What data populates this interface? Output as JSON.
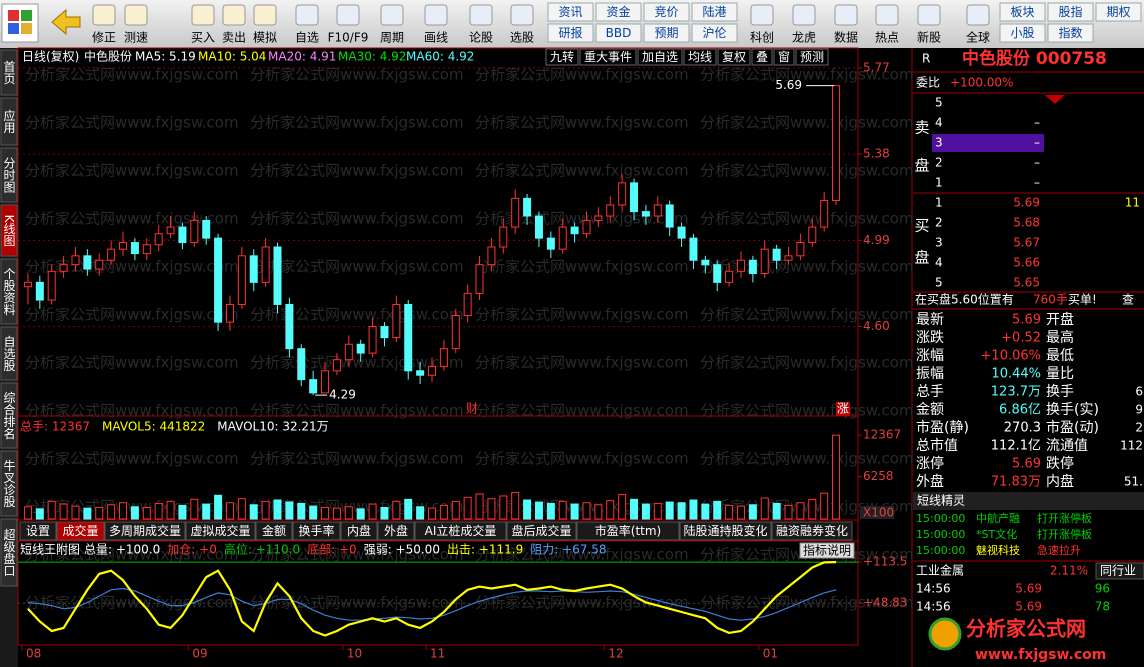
{
  "toolbar": {
    "buttons": [
      "修正",
      "测速",
      "买入",
      "卖出",
      "模拟",
      "自选",
      "F10/F9",
      "周期",
      "画线",
      "论股",
      "选股",
      "科创",
      "龙虎",
      "数据",
      "热点",
      "新股",
      "全球"
    ],
    "grid": [
      "资讯",
      "资金",
      "竞价",
      "陆港",
      "研报",
      "BBD",
      "预期",
      "沪伦"
    ],
    "grid2": [
      "板块",
      "股指",
      "期权",
      "小股",
      "指数"
    ]
  },
  "sidebar": [
    "首页",
    "应用",
    "分时图",
    "K线图",
    "个股资料",
    "自选股",
    "综合排名",
    "牛叉诊股",
    "超级盘口"
  ],
  "watermark": "分析家公式网www.fxjgsw.com",
  "chart_data": [
    {
      "type": "candlestick",
      "title": "日线(复权)",
      "stock": "中色股份",
      "legend": [
        {
          "label": "MA5: 5.19",
          "color": "#ffffff"
        },
        {
          "label": "MA10: 5.04",
          "color": "#ffff00"
        },
        {
          "label": "MA20: 4.91",
          "color": "#ff80ff"
        },
        {
          "label": "MA30: 4.92",
          "color": "#00e000"
        },
        {
          "label": "MA60: 4.92",
          "color": "#54fcfc"
        }
      ],
      "buttons": [
        "九转",
        "重大事件",
        "加自选",
        "均线",
        "复权",
        "叠",
        "窗",
        "预测"
      ],
      "annotations": {
        "high": "5.69",
        "low": "4.29",
        "fin": "财",
        "limit": "涨"
      },
      "categories": [
        "08",
        null,
        null,
        null,
        null,
        null,
        null,
        null,
        null,
        null,
        null,
        null,
        null,
        null,
        "09",
        null,
        null,
        null,
        null,
        null,
        null,
        null,
        null,
        null,
        null,
        null,
        null,
        "10",
        null,
        null,
        null,
        null,
        null,
        null,
        "11",
        null,
        null,
        null,
        null,
        null,
        null,
        null,
        null,
        null,
        null,
        null,
        null,
        null,
        null,
        "12",
        null,
        null,
        null,
        null,
        null,
        null,
        null,
        null,
        null,
        null,
        null,
        null,
        "01",
        null,
        null,
        null,
        null,
        null,
        null
      ],
      "candles": [
        [
          4.78,
          4.84,
          4.7,
          4.8
        ],
        [
          4.8,
          4.83,
          4.68,
          4.72
        ],
        [
          4.72,
          4.88,
          4.7,
          4.85
        ],
        [
          4.85,
          4.92,
          4.82,
          4.88
        ],
        [
          4.88,
          4.96,
          4.85,
          4.92
        ],
        [
          4.92,
          4.95,
          4.83,
          4.86
        ],
        [
          4.86,
          4.93,
          4.83,
          4.9
        ],
        [
          4.9,
          4.99,
          4.88,
          4.95
        ],
        [
          4.95,
          5.03,
          4.92,
          4.98
        ],
        [
          4.98,
          5.0,
          4.9,
          4.93
        ],
        [
          4.93,
          5.0,
          4.9,
          4.97
        ],
        [
          4.97,
          5.06,
          4.94,
          5.02
        ],
        [
          5.02,
          5.1,
          5.0,
          5.05
        ],
        [
          5.05,
          5.07,
          4.95,
          4.98
        ],
        [
          4.98,
          5.12,
          4.96,
          5.08
        ],
        [
          5.08,
          5.1,
          4.97,
          5.0
        ],
        [
          5.0,
          5.02,
          4.58,
          4.62
        ],
        [
          4.62,
          4.74,
          4.58,
          4.7
        ],
        [
          4.7,
          4.96,
          4.68,
          4.92
        ],
        [
          4.92,
          4.95,
          4.76,
          4.8
        ],
        [
          4.8,
          5.0,
          4.78,
          4.96
        ],
        [
          4.96,
          4.98,
          4.66,
          4.7
        ],
        [
          4.7,
          4.73,
          4.46,
          4.5
        ],
        [
          4.5,
          4.52,
          4.33,
          4.36
        ],
        [
          4.36,
          4.4,
          4.29,
          4.3
        ],
        [
          4.3,
          4.44,
          4.3,
          4.4
        ],
        [
          4.4,
          4.48,
          4.38,
          4.45
        ],
        [
          4.45,
          4.56,
          4.42,
          4.52
        ],
        [
          4.52,
          4.54,
          4.44,
          4.48
        ],
        [
          4.48,
          4.64,
          4.46,
          4.6
        ],
        [
          4.6,
          4.62,
          4.51,
          4.55
        ],
        [
          4.55,
          4.74,
          4.53,
          4.7
        ],
        [
          4.7,
          4.72,
          4.36,
          4.4
        ],
        [
          4.4,
          4.44,
          4.34,
          4.38
        ],
        [
          4.38,
          4.46,
          4.35,
          4.42
        ],
        [
          4.42,
          4.54,
          4.4,
          4.5
        ],
        [
          4.5,
          4.68,
          4.48,
          4.65
        ],
        [
          4.65,
          4.79,
          4.62,
          4.75
        ],
        [
          4.75,
          4.92,
          4.72,
          4.88
        ],
        [
          4.88,
          5.0,
          4.85,
          4.96
        ],
        [
          4.96,
          5.09,
          4.93,
          5.05
        ],
        [
          5.05,
          5.22,
          5.02,
          5.18
        ],
        [
          5.18,
          5.2,
          5.06,
          5.1
        ],
        [
          5.1,
          5.12,
          4.96,
          5.0
        ],
        [
          5.0,
          5.03,
          4.91,
          4.95
        ],
        [
          4.95,
          5.09,
          4.93,
          5.05
        ],
        [
          5.05,
          5.07,
          4.98,
          5.02
        ],
        [
          5.02,
          5.12,
          5.0,
          5.08
        ],
        [
          5.08,
          5.14,
          5.05,
          5.1
        ],
        [
          5.1,
          5.19,
          5.07,
          5.15
        ],
        [
          5.15,
          5.29,
          5.12,
          5.25
        ],
        [
          5.25,
          5.27,
          5.08,
          5.12
        ],
        [
          5.12,
          5.15,
          5.06,
          5.1
        ],
        [
          5.1,
          5.19,
          5.07,
          5.15
        ],
        [
          5.15,
          5.17,
          5.01,
          5.05
        ],
        [
          5.05,
          5.07,
          4.96,
          5.0
        ],
        [
          5.0,
          5.02,
          4.86,
          4.9
        ],
        [
          4.9,
          4.92,
          4.84,
          4.88
        ],
        [
          4.88,
          4.9,
          4.76,
          4.8
        ],
        [
          4.8,
          4.89,
          4.78,
          4.85
        ],
        [
          4.85,
          4.94,
          4.82,
          4.9
        ],
        [
          4.9,
          4.92,
          4.8,
          4.84
        ],
        [
          4.84,
          4.99,
          4.82,
          4.95
        ],
        [
          4.95,
          4.97,
          4.86,
          4.9
        ],
        [
          4.9,
          4.96,
          4.88,
          4.92
        ],
        [
          4.92,
          5.02,
          4.9,
          4.98
        ],
        [
          4.98,
          5.09,
          4.96,
          5.05
        ],
        [
          5.05,
          5.21,
          5.03,
          5.17
        ],
        [
          5.17,
          5.69,
          5.15,
          5.69
        ]
      ],
      "up_color": "#ff3232",
      "down_color": "#54fcfc",
      "ylim": [
        4.2,
        5.86
      ],
      "yticks": [
        5.77,
        5.38,
        4.99,
        {
          "value": 4.6,
          "label": "4.60"
        }
      ],
      "grid": true
    },
    {
      "type": "bar",
      "legend": [
        {
          "label": "总手: 12367",
          "color": "#ff3232"
        },
        {
          "label": "MAVOL5: 441822",
          "color": "#ffff00"
        },
        {
          "label": "MAVOL10: 32.21万",
          "color": "#ffffff"
        }
      ],
      "values": [
        1800,
        1500,
        2600,
        2200,
        1900,
        1600,
        1700,
        2100,
        2400,
        1800,
        1700,
        2300,
        2600,
        2000,
        2900,
        2200,
        3500,
        2400,
        3000,
        2100,
        2600,
        2800,
        2500,
        2300,
        1900,
        1700,
        1600,
        1800,
        1500,
        2200,
        1700,
        2600,
        2900,
        1800,
        1600,
        2000,
        2600,
        3200,
        3700,
        3000,
        3400,
        3900,
        2800,
        2500,
        2300,
        2600,
        2200,
        2400,
        2100,
        2700,
        3600,
        2900,
        2200,
        2300,
        2500,
        2400,
        2800,
        2200,
        2600,
        2000,
        1900,
        2100,
        3100,
        2300,
        2000,
        2400,
        2900,
        3800,
        12367
      ],
      "ylim": [
        0,
        14900
      ],
      "yticks": [
        12367,
        6258
      ],
      "unit": "X100",
      "tabs": [
        "设置",
        "成交量",
        "多周期成交量",
        "虚拟成交量",
        "金额",
        "换手率",
        "内盘",
        "外盘",
        "AI立桩成交量",
        "盘后成交量",
        "市盈率(ttm)",
        "陆股通持股变化",
        "融资融券变化"
      ]
    },
    {
      "type": "line",
      "title": "短线王附图",
      "legend": [
        {
          "label": "总量: +100.0",
          "color": "#ffffff"
        },
        {
          "label": "加仓: +0",
          "color": "#ff3232"
        },
        {
          "label": "高位: +110.0",
          "color": "#00c000"
        },
        {
          "label": "底部: +0",
          "color": "#ff3232"
        },
        {
          "label": "强弱: +50.00",
          "color": "#ffffff"
        },
        {
          "label": "出击: +111.9",
          "color": "#ffff00"
        },
        {
          "label": "阻力: +67.58",
          "color": "#54a0ff"
        }
      ],
      "button": "指标说明",
      "series": [
        {
          "color": "#ffff00",
          "values": [
            40,
            20,
            5,
            10,
            40,
            70,
            95,
            100,
            85,
            60,
            40,
            15,
            10,
            30,
            60,
            90,
            100,
            70,
            20,
            5,
            50,
            80,
            60,
            25,
            5,
            -2,
            5,
            15,
            20,
            25,
            20,
            25,
            15,
            10,
            20,
            35,
            55,
            70,
            75,
            72,
            75,
            78,
            70,
            72,
            75,
            70,
            68,
            72,
            75,
            78,
            72,
            60,
            50,
            45,
            40,
            35,
            30,
            25,
            10,
            2,
            5,
            20,
            40,
            60,
            75,
            90,
            105,
            113,
            113.5
          ]
        },
        {
          "color": "#3a7fd8",
          "values": [
            50,
            48,
            45,
            40,
            42,
            50,
            60,
            70,
            72,
            68,
            60,
            52,
            45,
            45,
            50,
            58,
            65,
            62,
            52,
            45,
            48,
            55,
            55,
            48,
            38,
            30,
            25,
            22,
            22,
            24,
            25,
            27,
            26,
            24,
            25,
            30,
            37,
            45,
            52,
            57,
            62,
            66,
            68,
            68,
            67,
            68,
            67,
            66,
            67,
            68,
            67,
            63,
            58,
            53,
            48,
            44,
            40,
            36,
            30,
            24,
            22,
            24,
            28,
            34,
            42,
            50,
            58,
            65,
            70
          ]
        }
      ],
      "ylim": [
        -17,
        120
      ],
      "yticks": [
        {
          "value": 113.5,
          "label": "+113.5"
        },
        {
          "value": 48.83,
          "label": "+48.83"
        }
      ]
    }
  ],
  "quote": {
    "prefix": "R",
    "title": "中色股份 000758",
    "ratio_label": "委比",
    "ratio": "+100.00%",
    "sell_label": [
      "卖",
      "盘"
    ],
    "buy_label": [
      "买",
      "盘"
    ],
    "sell": [
      {
        "level": "5"
      },
      {
        "level": "4",
        "price": "–"
      },
      {
        "level": "3",
        "price": "–"
      },
      {
        "level": "2",
        "price": "–"
      },
      {
        "level": "1",
        "price": "–"
      }
    ],
    "buy": [
      {
        "level": "1",
        "price": "5.69",
        "vol": "11"
      },
      {
        "level": "2",
        "price": "5.68"
      },
      {
        "level": "3",
        "price": "5.67"
      },
      {
        "level": "4",
        "price": "5.66"
      },
      {
        "level": "5",
        "price": "5.65"
      }
    ],
    "notice": {
      "text": "在买盘5.60位置有",
      "qty": "760手",
      "tag": "买单!",
      "more": "查"
    },
    "stats": [
      {
        "k": "最新",
        "v": "5.69",
        "c": "#ff3232",
        "k2": "开盘"
      },
      {
        "k": "涨跌",
        "v": "+0.52",
        "c": "#ff3232",
        "k2": "最高"
      },
      {
        "k": "涨幅",
        "v": "+10.06%",
        "c": "#ff3232",
        "k2": "最低"
      },
      {
        "k": "振幅",
        "v": "10.44%",
        "c": "#54fcfc",
        "k2": "量比"
      },
      {
        "k": "总手",
        "v": "123.7万",
        "c": "#54fcfc",
        "k2": "换手",
        "v2": "6"
      },
      {
        "k": "金额",
        "v": "6.86亿",
        "c": "#54fcfc",
        "k2": "换手(实)",
        "v2": "9"
      },
      {
        "k": "市盈(静)",
        "v": "270.3",
        "c": "#ffffff",
        "k2": "市盈(动)",
        "v2": "2"
      },
      {
        "k": "总市值",
        "v": "112.1亿",
        "c": "#ffffff",
        "k2": "流通值",
        "v2": "112"
      },
      {
        "k": "涨停",
        "v": "5.69",
        "c": "#ff3232",
        "k2": "跌停"
      },
      {
        "k": "外盘",
        "v": "71.83万",
        "c": "#ff3232",
        "k2": "内盘",
        "v2": "51."
      }
    ],
    "sprite": {
      "title": "短线精灵",
      "rows": [
        {
          "time": "15:00:00",
          "name": "中航产融",
          "event": "打开涨停板"
        },
        {
          "time": "15:00:00",
          "name": "*ST文化",
          "event": "打开涨停板"
        },
        {
          "time": "15:00:00",
          "name": "魅视科技",
          "event": "急速拉升"
        }
      ]
    },
    "sector": {
      "name": "工业金属",
      "change": "2.11%",
      "link": "同行业"
    },
    "ticks": [
      {
        "time": "14:56",
        "price": "5.69",
        "vol": "96"
      },
      {
        "time": "14:56",
        "price": "5.69",
        "vol": "78"
      }
    ],
    "logo": {
      "name": "分析家公式网",
      "url": "www.fxjgsw.com"
    }
  }
}
